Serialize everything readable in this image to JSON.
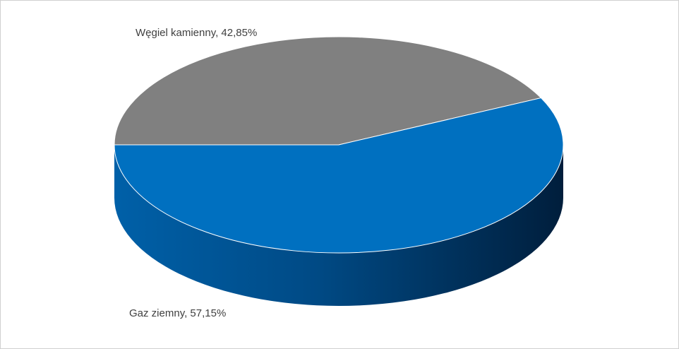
{
  "chart_data": {
    "type": "pie3d",
    "values": [
      42.85,
      57.15
    ],
    "value_labels": [
      "Węgiel kamienny, 42,85%",
      "Gaz ziemny, 57,15%"
    ],
    "colors": [
      "#808080",
      "#0070c0"
    ]
  }
}
